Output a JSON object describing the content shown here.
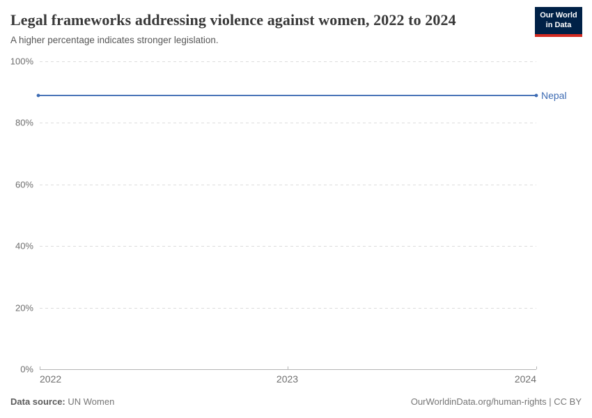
{
  "header": {
    "title": "Legal frameworks addressing violence against women, 2022 to 2024",
    "subtitle": "A higher percentage indicates stronger legislation.",
    "logo": {
      "line1": "Our World",
      "line2": "in Data",
      "bg_color": "#002147",
      "stripe_color": "#d42b21"
    }
  },
  "chart_data": {
    "type": "line",
    "title": "Legal frameworks addressing violence against women, 2022 to 2024",
    "subtitle": "A higher percentage indicates stronger legislation.",
    "x": [
      "2022",
      "2023",
      "2024"
    ],
    "series": [
      {
        "name": "Nepal",
        "values": [
          88.9,
          88.9,
          88.9
        ],
        "color": "#3d6bb3"
      }
    ],
    "xlabel": "",
    "ylabel": "",
    "ylim": [
      0,
      100
    ],
    "yticks": [
      0,
      20,
      40,
      60,
      80,
      100
    ],
    "ytick_suffix": "%",
    "grid": "horizontal-dashed",
    "legend": "inline-end-label",
    "gridline_color": "#dcdcdc",
    "axis_color": "#b5b5b5",
    "tick_label_color": "#6e6e6e"
  },
  "footer": {
    "datasource_label": "Data source:",
    "datasource_value": " UN Women",
    "attribution": "OurWorldinData.org/human-rights | CC BY"
  }
}
